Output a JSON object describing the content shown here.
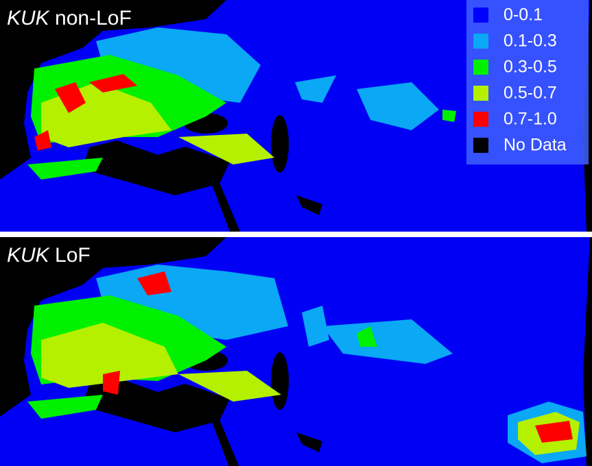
{
  "panels": [
    {
      "title_italic": "KUK",
      "title_rest": "non-LoF"
    },
    {
      "title_italic": "KUK",
      "title_rest": "LoF"
    }
  ],
  "legend": {
    "items": [
      {
        "label": "0-0.1",
        "color": "#0000ff"
      },
      {
        "label": "0.1-0.3",
        "color": "#0aa8f5"
      },
      {
        "label": "0.3-0.5",
        "color": "#00f000"
      },
      {
        "label": "0.5-0.7",
        "color": "#b4f000"
      },
      {
        "label": "0.7-1.0",
        "color": "#ff0000"
      },
      {
        "label": "No Data",
        "color": "#000000"
      }
    ]
  }
}
